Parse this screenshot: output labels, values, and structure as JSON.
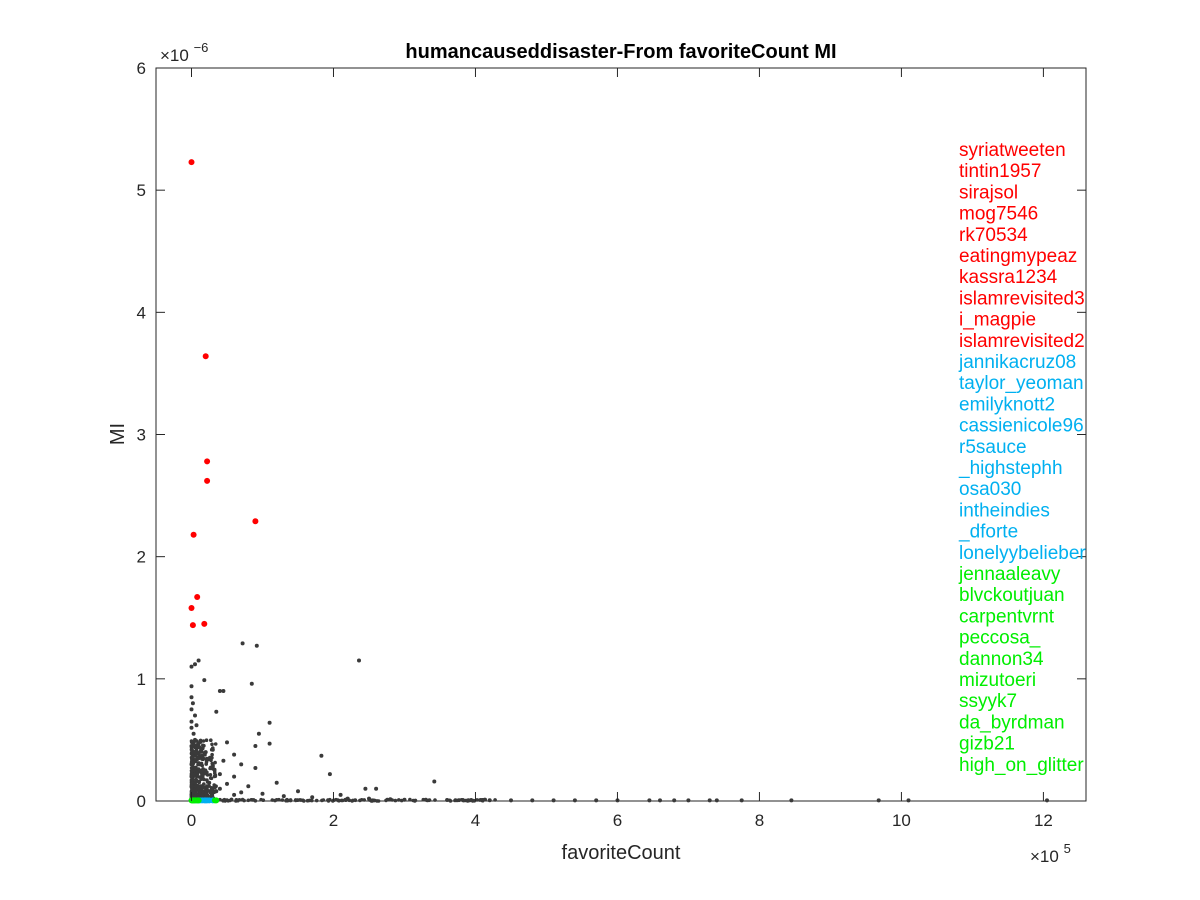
{
  "chart_data": {
    "type": "scatter",
    "title": "humancauseddisaster-From favoriteCount MI",
    "xlabel": "favoriteCount",
    "ylabel": "MI",
    "x_exponent_label": "×10",
    "x_exponent": "5",
    "y_exponent_label": "×10",
    "y_exponent": "−6",
    "xlim": [
      -0.5,
      12.6
    ],
    "ylim": [
      0,
      6
    ],
    "x_ticks": [
      0,
      2,
      4,
      6,
      8,
      10,
      12
    ],
    "y_ticks": [
      0,
      1,
      2,
      3,
      4,
      5,
      6
    ],
    "grid": false,
    "colors": {
      "red": "#ff0000",
      "blue": "#00b0f0",
      "green": "#00ee00",
      "gray": "#3a3a3a"
    },
    "series": [
      {
        "color_key": "red",
        "points": [
          [
            0.0,
            5.23
          ],
          [
            0.2,
            3.64
          ],
          [
            0.22,
            2.78
          ],
          [
            0.22,
            2.62
          ],
          [
            0.9,
            2.29
          ],
          [
            0.03,
            2.18
          ],
          [
            0.08,
            1.67
          ],
          [
            0.0,
            1.58
          ],
          [
            0.02,
            1.44
          ],
          [
            0.18,
            1.45
          ]
        ]
      },
      {
        "color_key": "blue",
        "points": [
          [
            0.05,
            0.005
          ],
          [
            0.1,
            0.005
          ],
          [
            0.2,
            0.005
          ],
          [
            0.22,
            0.005
          ],
          [
            0.15,
            0.005
          ],
          [
            0.12,
            0.005
          ],
          [
            0.08,
            0.005
          ],
          [
            0.18,
            0.005
          ],
          [
            0.3,
            0.005
          ],
          [
            0.25,
            0.005
          ]
        ]
      },
      {
        "color_key": "green",
        "points": [
          [
            0.0,
            0.005
          ],
          [
            0.02,
            0.005
          ],
          [
            0.04,
            0.005
          ],
          [
            0.06,
            0.005
          ],
          [
            0.08,
            0.005
          ],
          [
            0.1,
            0.005
          ],
          [
            0.35,
            0.005
          ],
          [
            0.33,
            0.005
          ],
          [
            0.03,
            0.005
          ],
          [
            0.01,
            0.005
          ]
        ]
      },
      {
        "color_key": "gray",
        "points": [
          [
            0.72,
            1.29
          ],
          [
            0.92,
            1.27
          ],
          [
            2.36,
            1.15
          ],
          [
            0.1,
            1.15
          ],
          [
            0.05,
            1.12
          ],
          [
            0.0,
            1.1
          ],
          [
            0.18,
            0.99
          ],
          [
            0.45,
            0.9
          ],
          [
            0.85,
            0.96
          ],
          [
            0.0,
            0.94
          ],
          [
            0.4,
            0.9
          ],
          [
            0.0,
            0.85
          ],
          [
            0.02,
            0.8
          ],
          [
            0.0,
            0.75
          ],
          [
            0.35,
            0.73
          ],
          [
            0.05,
            0.7
          ],
          [
            0.0,
            0.65
          ],
          [
            1.1,
            0.64
          ],
          [
            0.0,
            0.6
          ],
          [
            0.95,
            0.55
          ],
          [
            0.05,
            0.5
          ],
          [
            0.5,
            0.48
          ],
          [
            0.9,
            0.45
          ],
          [
            1.1,
            0.47
          ],
          [
            0.0,
            0.45
          ],
          [
            0.3,
            0.42
          ],
          [
            0.6,
            0.38
          ],
          [
            0.2,
            0.4
          ],
          [
            1.83,
            0.37
          ],
          [
            0.1,
            0.35
          ],
          [
            0.45,
            0.33
          ],
          [
            0.7,
            0.3
          ],
          [
            0.0,
            0.3
          ],
          [
            0.3,
            0.28
          ],
          [
            0.9,
            0.27
          ],
          [
            1.95,
            0.22
          ],
          [
            0.15,
            0.25
          ],
          [
            0.4,
            0.22
          ],
          [
            0.6,
            0.2
          ],
          [
            0.0,
            0.2
          ],
          [
            3.42,
            0.16
          ],
          [
            1.2,
            0.15
          ],
          [
            0.25,
            0.15
          ],
          [
            0.5,
            0.14
          ],
          [
            0.8,
            0.12
          ],
          [
            2.45,
            0.1
          ],
          [
            2.6,
            0.1
          ],
          [
            0.1,
            0.1
          ],
          [
            1.5,
            0.08
          ],
          [
            0.35,
            0.08
          ],
          [
            1.0,
            0.06
          ],
          [
            2.1,
            0.05
          ],
          [
            0.6,
            0.05
          ],
          [
            1.3,
            0.04
          ],
          [
            1.7,
            0.03
          ],
          [
            0.2,
            0.06
          ],
          [
            0.7,
            0.07
          ],
          [
            0.15,
            0.05
          ],
          [
            0.05,
            0.15
          ],
          [
            0.0,
            0.12
          ],
          [
            0.08,
            0.22
          ],
          [
            0.12,
            0.3
          ],
          [
            0.04,
            0.4
          ],
          [
            0.1,
            0.45
          ],
          [
            0.03,
            0.55
          ],
          [
            0.07,
            0.62
          ],
          [
            0.14,
            0.18
          ],
          [
            0.22,
            0.12
          ],
          [
            0.28,
            0.09
          ],
          [
            0.4,
            0.1
          ],
          [
            2.2,
            0.02
          ],
          [
            2.5,
            0.02
          ],
          [
            2.8,
            0.015
          ],
          [
            3.0,
            0.01
          ],
          [
            3.3,
            0.01
          ],
          [
            3.6,
            0.008
          ],
          [
            3.9,
            0.006
          ],
          [
            4.2,
            0.006
          ],
          [
            4.5,
            0.005
          ],
          [
            4.8,
            0.005
          ],
          [
            5.1,
            0.005
          ],
          [
            5.4,
            0.005
          ],
          [
            5.7,
            0.005
          ],
          [
            6.0,
            0.005
          ],
          [
            6.45,
            0.005
          ],
          [
            6.6,
            0.005
          ],
          [
            6.8,
            0.005
          ],
          [
            7.0,
            0.005
          ],
          [
            7.3,
            0.005
          ],
          [
            7.4,
            0.005
          ],
          [
            7.75,
            0.005
          ],
          [
            8.45,
            0.005
          ],
          [
            9.68,
            0.005
          ],
          [
            10.1,
            0.005
          ],
          [
            12.05,
            0.005
          ]
        ]
      }
    ],
    "dense_cluster": {
      "x_max": 0.35,
      "y_max": 0.5,
      "color_key": "gray"
    },
    "baseline_band": {
      "x_min": 0.0,
      "x_max": 4.3,
      "color_key": "gray"
    },
    "annotations": [
      {
        "text": "syriatweeten",
        "color_key": "red"
      },
      {
        "text": "tintin1957",
        "color_key": "red"
      },
      {
        "text": "sirajsol",
        "color_key": "red"
      },
      {
        "text": "mog7546",
        "color_key": "red"
      },
      {
        "text": "rk70534",
        "color_key": "red"
      },
      {
        "text": "eatingmypeaz",
        "color_key": "red"
      },
      {
        "text": "kassra1234",
        "color_key": "red"
      },
      {
        "text": "islamrevisited3",
        "color_key": "red"
      },
      {
        "text": "i_magpie",
        "color_key": "red"
      },
      {
        "text": "islamrevisited2",
        "color_key": "red"
      },
      {
        "text": "jannikacruz08",
        "color_key": "blue"
      },
      {
        "text": "taylor_yeoman",
        "color_key": "blue"
      },
      {
        "text": "emilyknott2",
        "color_key": "blue"
      },
      {
        "text": "cassienicole96",
        "color_key": "blue"
      },
      {
        "text": "r5sauce",
        "color_key": "blue"
      },
      {
        "text": "_highstephh",
        "color_key": "blue"
      },
      {
        "text": "osa030",
        "color_key": "blue"
      },
      {
        "text": "intheindies",
        "color_key": "blue"
      },
      {
        "text": "_dforte",
        "color_key": "blue"
      },
      {
        "text": "lonelyybelieber",
        "color_key": "blue"
      },
      {
        "text": "jennaaleavy",
        "color_key": "green"
      },
      {
        "text": "blvckoutjuan",
        "color_key": "green"
      },
      {
        "text": "carpentvrnt",
        "color_key": "green"
      },
      {
        "text": "peccosa_",
        "color_key": "green"
      },
      {
        "text": "dannon34",
        "color_key": "green"
      },
      {
        "text": "mizutoeri",
        "color_key": "green"
      },
      {
        "text": "ssyyk7",
        "color_key": "green"
      },
      {
        "text": "da_byrdman",
        "color_key": "green"
      },
      {
        "text": "gizb21",
        "color_key": "green"
      },
      {
        "text": "high_on_glitter",
        "color_key": "green"
      }
    ]
  }
}
